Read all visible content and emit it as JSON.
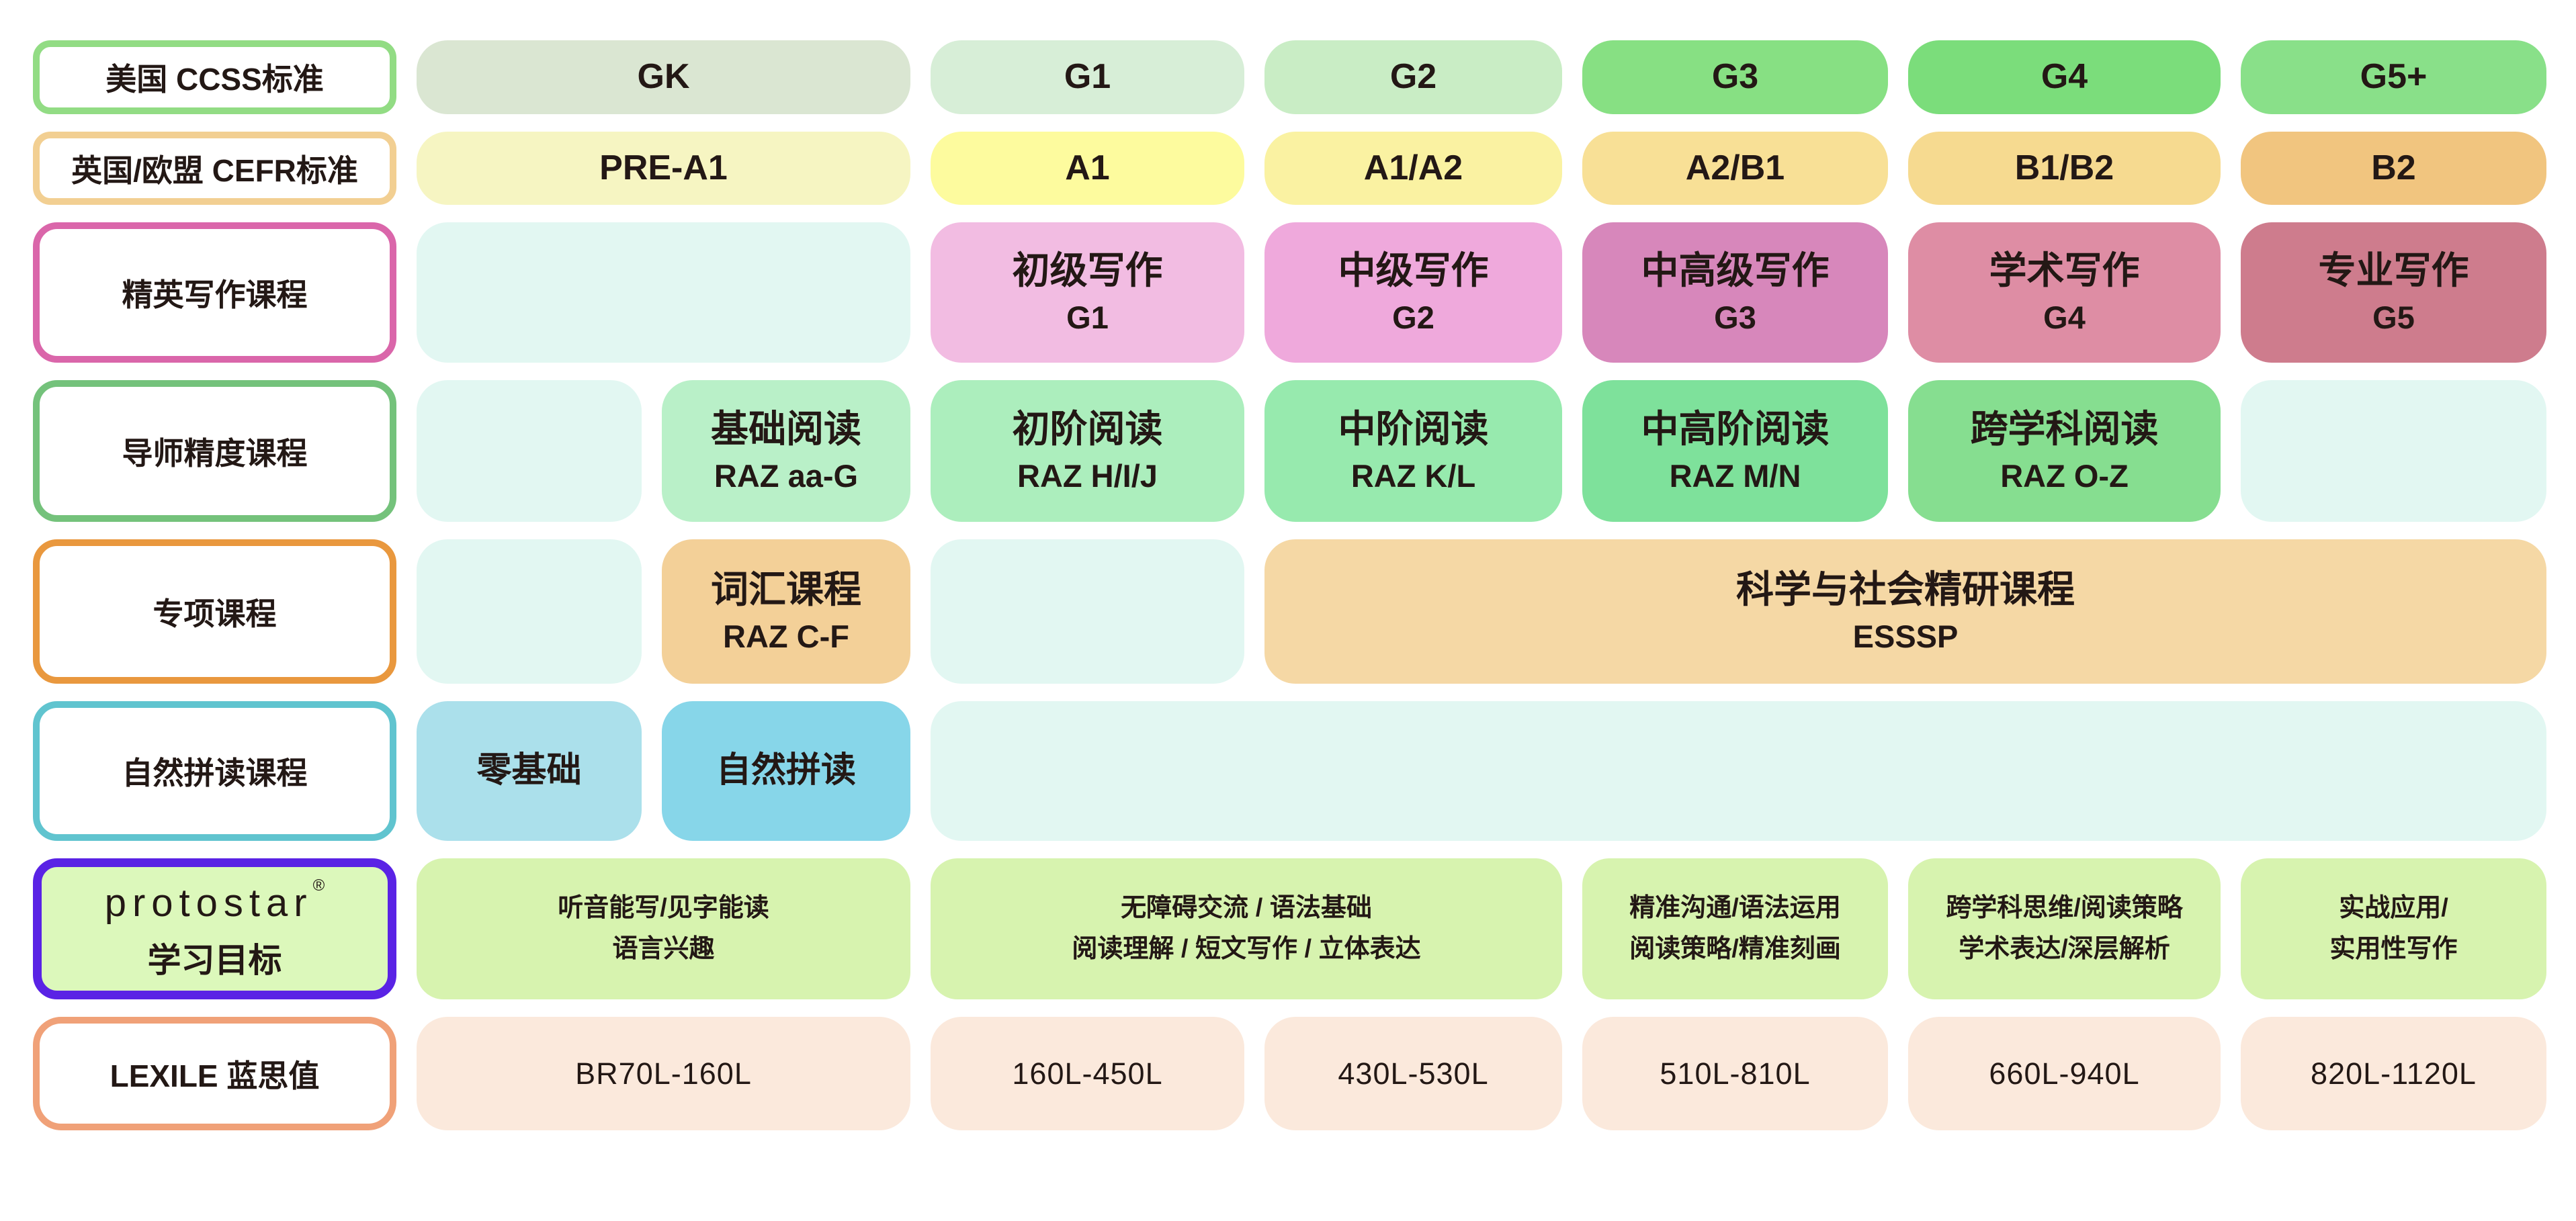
{
  "colors": {
    "background": "#FFFFFF",
    "text": "#231815",
    "border_ccss": "#92DC84",
    "border_cefr": "#F2CF92",
    "border_writing": "#DA66AA",
    "border_reading": "#74C27B",
    "border_special": "#E9983E",
    "border_phonics": "#60C4CF",
    "border_goals": "#5A23E5",
    "border_lexile": "#F0A178",
    "empty_cell": "#E2F7F2",
    "goal_cell": "#D7F3AF",
    "lexile_cell": "#FBE9DC"
  },
  "ccss": {
    "label": "美国 CCSS标准",
    "cells": [
      "GK",
      "G1",
      "G2",
      "G3",
      "G4",
      "G5+"
    ]
  },
  "cefr": {
    "label": "英国/欧盟 CEFR标准",
    "cells": [
      "PRE-A1",
      "A1",
      "A1/A2",
      "A2/B1",
      "B1/B2",
      "B2"
    ]
  },
  "writing": {
    "label": "精英写作课程",
    "cells": [
      {
        "title": "初级写作",
        "sub": "G1"
      },
      {
        "title": "中级写作",
        "sub": "G2"
      },
      {
        "title": "中高级写作",
        "sub": "G3"
      },
      {
        "title": "学术写作",
        "sub": "G4"
      },
      {
        "title": "专业写作",
        "sub": "G5"
      }
    ]
  },
  "reading": {
    "label": "导师精度课程",
    "cells": [
      {
        "title": "基础阅读",
        "sub": "RAZ aa-G"
      },
      {
        "title": "初阶阅读",
        "sub": "RAZ H/I/J"
      },
      {
        "title": "中阶阅读",
        "sub": "RAZ K/L"
      },
      {
        "title": "中高阶阅读",
        "sub": "RAZ M/N"
      },
      {
        "title": "跨学科阅读",
        "sub": "RAZ O-Z"
      }
    ]
  },
  "special": {
    "label": "专项课程",
    "vocab": {
      "title": "词汇课程",
      "sub": "RAZ C-F"
    },
    "esssp": {
      "title": "科学与社会精研课程",
      "sub": "ESSSP"
    }
  },
  "phonics": {
    "label": "自然拼读课程",
    "cells": [
      "零基础",
      "自然拼读"
    ]
  },
  "goals": {
    "logo": "protostar",
    "reg": "®",
    "label": "学习目标",
    "cells": [
      {
        "line1": "听音能写/见字能读",
        "line2": "语言兴趣"
      },
      {
        "line1": "无障碍交流 / 语法基础",
        "line2": "阅读理解 / 短文写作 / 立体表达"
      },
      {
        "line1": "精准沟通/语法运用",
        "line2": "阅读策略/精准刻画"
      },
      {
        "line1": "跨学科思维/阅读策略",
        "line2": "学术表达/深层解析"
      },
      {
        "line1": "实战应用/",
        "line2": "实用性写作"
      }
    ]
  },
  "lexile": {
    "label": "LEXILE 蓝思值",
    "cells": [
      "BR70L-160L",
      "160L-450L",
      "430L-530L",
      "510L-810L",
      "660L-940L",
      "820L-1120L"
    ]
  }
}
